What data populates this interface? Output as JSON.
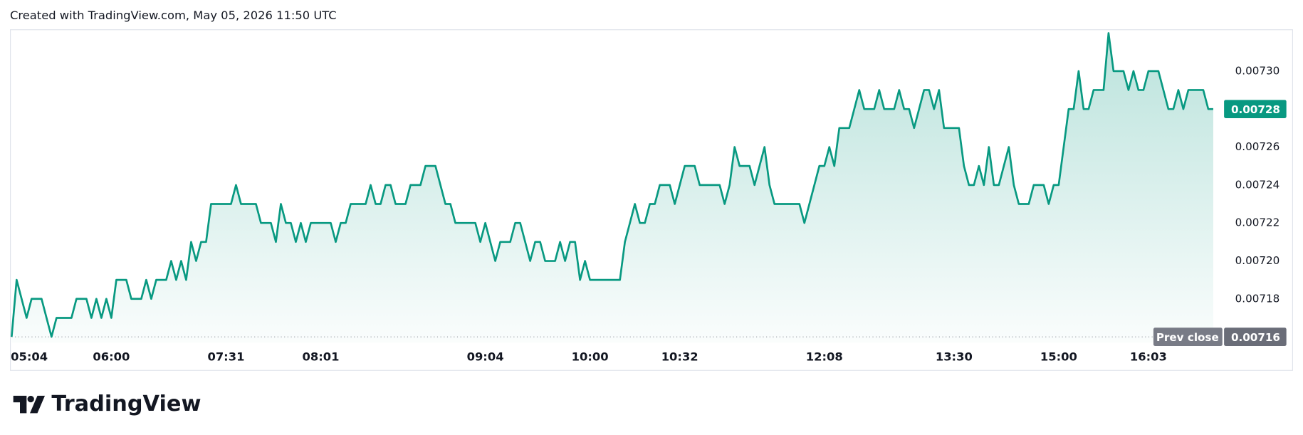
{
  "chart_data": {
    "type": "area",
    "credit": "Created with TradingView.com, May 05, 2026 11:50 UTC",
    "logo_text": "TradingView",
    "color": "#089981",
    "categories": [
      "05:04",
      null,
      null,
      null,
      null,
      null,
      null,
      null,
      null,
      null,
      null,
      null,
      null,
      null,
      null,
      null,
      null,
      null,
      null,
      null,
      "06:00",
      null,
      null,
      null,
      null,
      null,
      null,
      null,
      null,
      null,
      null,
      null,
      null,
      null,
      null,
      null,
      null,
      null,
      null,
      null,
      null,
      null,
      null,
      "07:31",
      null,
      null,
      null,
      null,
      null,
      null,
      null,
      null,
      null,
      null,
      null,
      null,
      null,
      null,
      null,
      null,
      null,
      null,
      "08:01",
      null,
      null,
      null,
      null,
      null,
      null,
      null,
      null,
      null,
      null,
      null,
      null,
      null,
      null,
      null,
      null,
      null,
      null,
      null,
      null,
      null,
      null,
      null,
      null,
      null,
      null,
      null,
      null,
      null,
      null,
      null,
      null,
      "09:04",
      null,
      null,
      null,
      null,
      null,
      null,
      null,
      null,
      null,
      null,
      null,
      null,
      null,
      null,
      null,
      null,
      null,
      null,
      null,
      null,
      "10:00",
      null,
      null,
      null,
      null,
      null,
      null,
      null,
      null,
      null,
      null,
      null,
      null,
      null,
      null,
      null,
      null,
      null,
      "10:32",
      null,
      null,
      null,
      null,
      null,
      null,
      null,
      null,
      null,
      null,
      null,
      null,
      null,
      null,
      null,
      null,
      null,
      null,
      null,
      null,
      null,
      null,
      null,
      null,
      null,
      null,
      null,
      null,
      "12:08",
      null,
      null,
      null,
      null,
      null,
      null,
      null,
      null,
      null,
      null,
      null,
      null,
      null,
      null,
      null,
      null,
      null,
      null,
      null,
      null,
      null,
      null,
      null,
      null,
      null,
      "13:30",
      null,
      null,
      null,
      null,
      null,
      null,
      null,
      null,
      null,
      null,
      null,
      null,
      null,
      null,
      null,
      null,
      null,
      null,
      null,
      null,
      "15:00",
      null,
      null,
      null,
      null,
      null,
      null,
      null,
      null,
      null,
      null,
      null,
      null,
      null,
      null,
      null,
      null,
      null,
      "16:03",
      null,
      null,
      null,
      null,
      null,
      null,
      null,
      null,
      null,
      null,
      null,
      null,
      null
    ],
    "values": [
      0.00716,
      0.00719,
      0.00718,
      0.00717,
      0.00718,
      0.00718,
      0.00718,
      0.00717,
      0.00716,
      0.00717,
      0.00717,
      0.00717,
      0.00717,
      0.00718,
      0.00718,
      0.00718,
      0.00717,
      0.00718,
      0.00717,
      0.00718,
      0.00717,
      0.00719,
      0.00719,
      0.00719,
      0.00718,
      0.00718,
      0.00718,
      0.00719,
      0.00718,
      0.00719,
      0.00719,
      0.00719,
      0.0072,
      0.00719,
      0.0072,
      0.00719,
      0.00721,
      0.0072,
      0.00721,
      0.00721,
      0.00723,
      0.00723,
      0.00723,
      0.00723,
      0.00723,
      0.00724,
      0.00723,
      0.00723,
      0.00723,
      0.00723,
      0.00722,
      0.00722,
      0.00722,
      0.00721,
      0.00723,
      0.00722,
      0.00722,
      0.00721,
      0.00722,
      0.00721,
      0.00722,
      0.00722,
      0.00722,
      0.00722,
      0.00722,
      0.00721,
      0.00722,
      0.00722,
      0.00723,
      0.00723,
      0.00723,
      0.00723,
      0.00724,
      0.00723,
      0.00723,
      0.00724,
      0.00724,
      0.00723,
      0.00723,
      0.00723,
      0.00724,
      0.00724,
      0.00724,
      0.00725,
      0.00725,
      0.00725,
      0.00724,
      0.00723,
      0.00723,
      0.00722,
      0.00722,
      0.00722,
      0.00722,
      0.00722,
      0.00721,
      0.00722,
      0.00721,
      0.0072,
      0.00721,
      0.00721,
      0.00721,
      0.00722,
      0.00722,
      0.00721,
      0.0072,
      0.00721,
      0.00721,
      0.0072,
      0.0072,
      0.0072,
      0.00721,
      0.0072,
      0.00721,
      0.00721,
      0.00719,
      0.0072,
      0.00719,
      0.00719,
      0.00719,
      0.00719,
      0.00719,
      0.00719,
      0.00719,
      0.00721,
      0.00722,
      0.00723,
      0.00722,
      0.00722,
      0.00723,
      0.00723,
      0.00724,
      0.00724,
      0.00724,
      0.00723,
      0.00724,
      0.00725,
      0.00725,
      0.00725,
      0.00724,
      0.00724,
      0.00724,
      0.00724,
      0.00724,
      0.00723,
      0.00724,
      0.00726,
      0.00725,
      0.00725,
      0.00725,
      0.00724,
      0.00725,
      0.00726,
      0.00724,
      0.00723,
      0.00723,
      0.00723,
      0.00723,
      0.00723,
      0.00723,
      0.00722,
      0.00723,
      0.00724,
      0.00725,
      0.00725,
      0.00726,
      0.00725,
      0.00727,
      0.00727,
      0.00727,
      0.00728,
      0.00729,
      0.00728,
      0.00728,
      0.00728,
      0.00729,
      0.00728,
      0.00728,
      0.00728,
      0.00729,
      0.00728,
      0.00728,
      0.00727,
      0.00728,
      0.00729,
      0.00729,
      0.00728,
      0.00729,
      0.00727,
      0.00727,
      0.00727,
      0.00727,
      0.00725,
      0.00724,
      0.00724,
      0.00725,
      0.00724,
      0.00726,
      0.00724,
      0.00724,
      0.00725,
      0.00726,
      0.00724,
      0.00723,
      0.00723,
      0.00723,
      0.00724,
      0.00724,
      0.00724,
      0.00723,
      0.00724,
      0.00724,
      0.00726,
      0.00728,
      0.00728,
      0.0073,
      0.00728,
      0.00728,
      0.00729,
      0.00729,
      0.00729,
      0.00732,
      0.0073,
      0.0073,
      0.0073,
      0.00729,
      0.0073,
      0.00729,
      0.00729,
      0.0073,
      0.0073,
      0.0073,
      0.00729,
      0.00728,
      0.00728,
      0.00729,
      0.00728,
      0.00729,
      0.00729,
      0.00729,
      0.00729,
      0.00728,
      0.00728
    ],
    "ylim": [
      0.007157,
      0.007322
    ],
    "yticks": [
      {
        "value": 0.00718,
        "label": "0.00718"
      },
      {
        "value": 0.0072,
        "label": "0.00720"
      },
      {
        "value": 0.00722,
        "label": "0.00722"
      },
      {
        "value": 0.00724,
        "label": "0.00724"
      },
      {
        "value": 0.00726,
        "label": "0.00726"
      },
      {
        "value": 0.0073,
        "label": "0.00730"
      }
    ],
    "last_price": 0.00728,
    "prev_close": {
      "label": "Prev close",
      "value": 0.00716
    },
    "grid": false
  }
}
